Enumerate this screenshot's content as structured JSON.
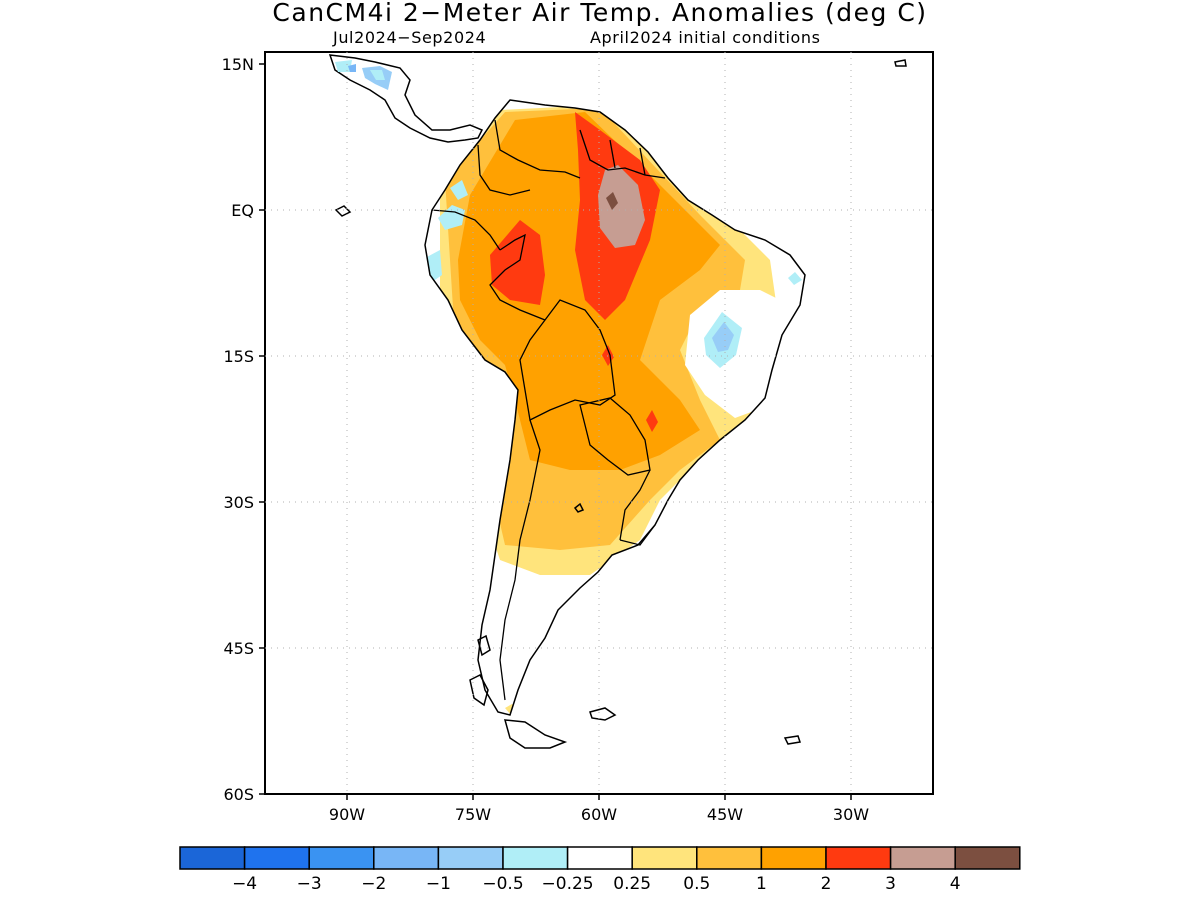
{
  "header": {
    "title": "CanCM4i 2−Meter Air Temp. Anomalies (deg C)",
    "period": "Jul2024−Sep2024",
    "init": "April2024 initial conditions"
  },
  "axes": {
    "lat_labels": [
      {
        "lat": 15,
        "text": "15N"
      },
      {
        "lat": 0,
        "text": "EQ"
      },
      {
        "lat": -15,
        "text": "15S"
      },
      {
        "lat": -30,
        "text": "30S"
      },
      {
        "lat": -45,
        "text": "45S"
      },
      {
        "lat": -60,
        "text": "60S"
      }
    ],
    "lon_labels": [
      {
        "lon": -90,
        "text": "90W"
      },
      {
        "lon": -75,
        "text": "75W"
      },
      {
        "lon": -60,
        "text": "60W"
      },
      {
        "lon": -45,
        "text": "45W"
      },
      {
        "lon": -30,
        "text": "30W"
      }
    ],
    "lon_range": [
      -100,
      -20
    ],
    "lat_range": [
      -60,
      15
    ],
    "grid": "dotted"
  },
  "colorbar": {
    "colors": [
      "#1b66d8",
      "#1f73ee",
      "#3a93f2",
      "#78b6f6",
      "#97cdf7",
      "#b0eef7",
      "#ffffff",
      "#ffe47c",
      "#ffc03c",
      "#ffa100",
      "#ff3a10",
      "#c69d92",
      "#7c4f40"
    ],
    "labels": [
      "−4",
      "−3",
      "−2",
      "−1",
      "−0.5",
      "−0.25",
      "0.25",
      "0.5",
      "1",
      "2",
      "3",
      "4"
    ]
  },
  "map_features": [
    "south-america-coastline",
    "country-borders",
    "temperature-anomaly-shading"
  ]
}
